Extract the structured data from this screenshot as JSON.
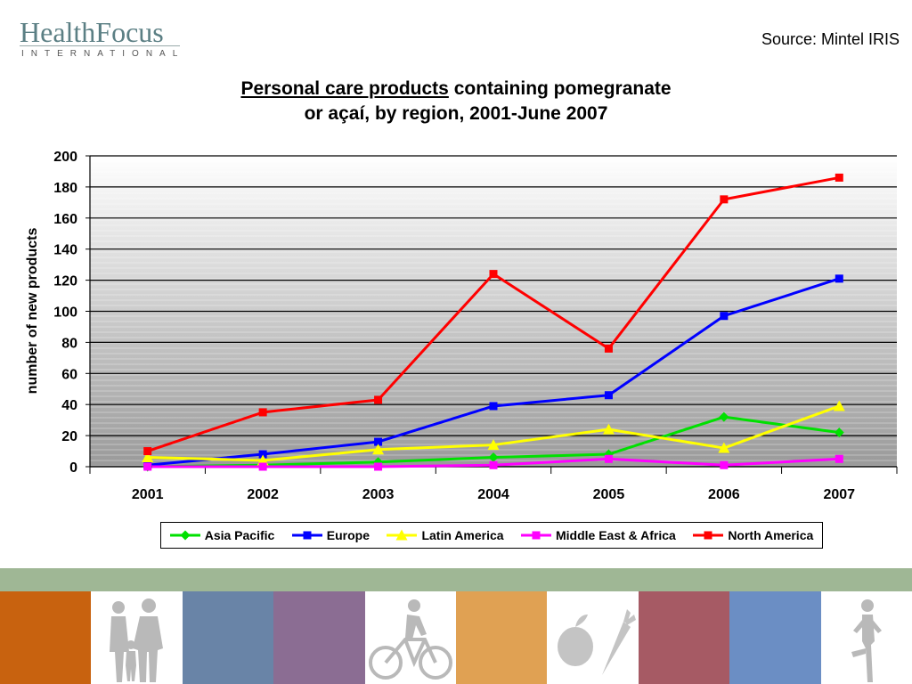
{
  "header": {
    "logo_brand": "HealthFocus",
    "logo_sub": "INTERNATIONAL",
    "source": "Source: Mintel IRIS"
  },
  "title": {
    "underlined": "Personal care products",
    "rest_line1": " containing pomegranate",
    "line2": "or açaí, by region, 2001-June 2007"
  },
  "chart_data": {
    "type": "line",
    "title": "Personal care products containing pomegranate or açaí, by region, 2001-June 2007",
    "xlabel": "",
    "ylabel": "number of new products",
    "categories": [
      "2001",
      "2002",
      "2003",
      "2004",
      "2005",
      "2006",
      "2007"
    ],
    "ylim": [
      0,
      200
    ],
    "yticks": [
      0,
      20,
      40,
      60,
      80,
      100,
      120,
      140,
      160,
      180,
      200
    ],
    "grid": true,
    "legend_position": "bottom",
    "series": [
      {
        "name": "Asia Pacific",
        "color": "#00e000",
        "marker": "diamond",
        "values": [
          0,
          1,
          3,
          6,
          8,
          32,
          22
        ]
      },
      {
        "name": "Europe",
        "color": "#0000ff",
        "marker": "square",
        "values": [
          1,
          8,
          16,
          39,
          46,
          97,
          121
        ]
      },
      {
        "name": "Latin America",
        "color": "#ffff00",
        "marker": "triangle",
        "values": [
          6,
          4,
          11,
          14,
          24,
          12,
          39
        ]
      },
      {
        "name": "Middle East & Africa",
        "color": "#ff00ff",
        "marker": "square",
        "values": [
          0,
          0,
          0,
          1,
          5,
          1,
          5
        ]
      },
      {
        "name": "North America",
        "color": "#ff0000",
        "marker": "square",
        "values": [
          10,
          35,
          43,
          124,
          76,
          172,
          186
        ]
      }
    ]
  },
  "footer": {
    "tiles": [
      {
        "color": "#c8620f",
        "icon": "none"
      },
      {
        "color": "#ffffff",
        "icon": "family-icon"
      },
      {
        "color": "#6984a7",
        "icon": "none"
      },
      {
        "color": "#8b6d93",
        "icon": "none"
      },
      {
        "color": "#ffffff",
        "icon": "cyclist-icon"
      },
      {
        "color": "#e0a153",
        "icon": "none"
      },
      {
        "color": "#ffffff",
        "icon": "fruit-vegetable-icon"
      },
      {
        "color": "#a65a64",
        "icon": "none"
      },
      {
        "color": "#6b8ec4",
        "icon": "none"
      },
      {
        "color": "#ffffff",
        "icon": "yoga-icon"
      }
    ]
  }
}
